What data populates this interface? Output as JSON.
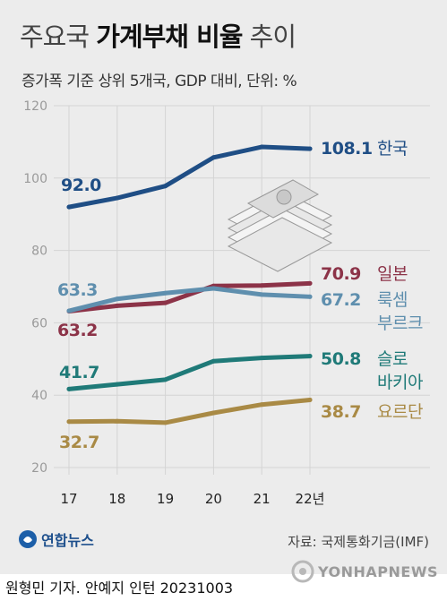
{
  "header": {
    "title_light_1": "주요국",
    "title_bold": "가계부채 비율",
    "title_light_2": "추이",
    "subtitle": "증가폭 기준 상위 5개국, GDP 대비, 단위: %"
  },
  "chart_data": {
    "type": "line",
    "x": [
      "17",
      "18",
      "19",
      "20",
      "21",
      "22년"
    ],
    "ylim": [
      20,
      120
    ],
    "yticks": [
      20,
      40,
      60,
      80,
      100,
      120
    ],
    "grid": true,
    "series": [
      {
        "name": "한국",
        "values": [
          92.0,
          94.5,
          97.8,
          105.7,
          108.6,
          108.1
        ],
        "color": "#1f4e85",
        "first_label": "92.0",
        "last_label": "108.1"
      },
      {
        "name": "일본",
        "values": [
          63.2,
          64.7,
          65.5,
          70.2,
          70.3,
          70.9
        ],
        "color": "#8c3348",
        "first_label": "63.2",
        "last_label": "70.9"
      },
      {
        "name": "룩셈부르크",
        "name_lines": [
          "룩셈",
          "부르크"
        ],
        "values": [
          63.3,
          66.6,
          68.2,
          69.5,
          67.8,
          67.2
        ],
        "color": "#5f8fae",
        "first_label": "63.3",
        "last_label": "67.2"
      },
      {
        "name": "슬로바키아",
        "name_lines": [
          "슬로",
          "바키아"
        ],
        "values": [
          41.7,
          43.0,
          44.3,
          49.4,
          50.3,
          50.8
        ],
        "color": "#1f7a78",
        "first_label": "41.7",
        "last_label": "50.8"
      },
      {
        "name": "요르단",
        "values": [
          32.7,
          32.8,
          32.4,
          35.1,
          37.4,
          38.7
        ],
        "color": "#a98a45",
        "first_label": "32.7",
        "last_label": "38.7"
      }
    ]
  },
  "footer": {
    "logo_text": "연합뉴스",
    "source": "자료: 국제통화기금(IMF)",
    "credit": "원형민 기자. 안예지 인턴  20231003",
    "watermark": "YONHAPNEWS"
  },
  "icons": [
    "money-stack-icon",
    "yonhap-logo-icon",
    "yonhap-watermark-icon"
  ]
}
